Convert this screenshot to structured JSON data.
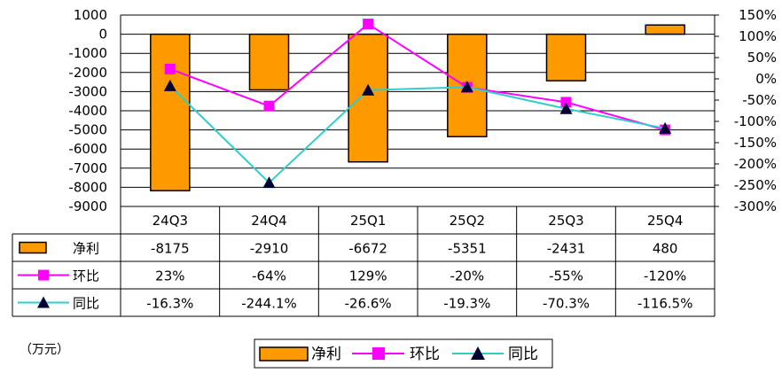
{
  "chart_data": {
    "type": "bar+line",
    "unit_label": "（万元）",
    "categories": [
      "24Q3",
      "24Q4",
      "25Q1",
      "25Q2",
      "25Q3",
      "25Q4"
    ],
    "left_axis": {
      "min": -9000,
      "max": 1000,
      "step": 1000
    },
    "right_axis": {
      "min": -300,
      "max": 150,
      "step": 50,
      "suffix": "%"
    },
    "grid": true,
    "legend_position": "bottom",
    "series": [
      {
        "name": "净利",
        "kind": "bar",
        "axis": "left",
        "color": "#FF9900",
        "values": [
          -8175,
          -2910,
          -6672,
          -5351,
          -2431,
          480
        ],
        "labels": [
          "-8175",
          "-2910",
          "-6672",
          "-5351",
          "-2431",
          "480"
        ]
      },
      {
        "name": "环比",
        "kind": "line",
        "axis": "right",
        "color": "#FF00FF",
        "marker": "square",
        "values": [
          23,
          -64,
          129,
          -20,
          -55,
          -120
        ],
        "labels": [
          "23%",
          "-64%",
          "129%",
          "-20%",
          "-55%",
          "-120%"
        ]
      },
      {
        "name": "同比",
        "kind": "line",
        "axis": "right",
        "color": "#33CCCC",
        "marker": "triangle",
        "values": [
          -16.3,
          -244.1,
          -26.6,
          -19.3,
          -70.3,
          -116.5
        ],
        "labels": [
          "-16.3%",
          "-244.1%",
          "-26.6%",
          "-19.3%",
          "-70.3%",
          "-116.5%"
        ]
      }
    ]
  }
}
